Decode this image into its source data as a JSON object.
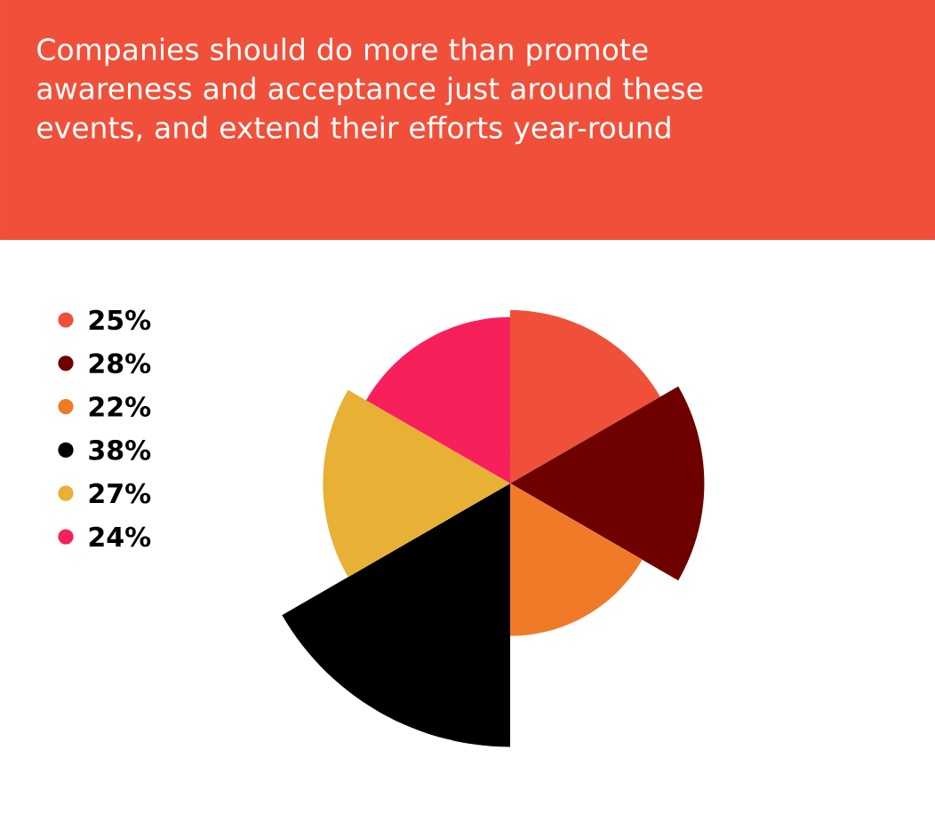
{
  "chart_data": {
    "type": "other",
    "title": "Companies should do more than promote awareness and acceptance just around these events, and extend their efforts year-round",
    "categories": [
      null,
      null,
      null,
      null,
      null,
      null
    ],
    "values": [
      25,
      28,
      22,
      38,
      27,
      24
    ],
    "value_labels": [
      "25%",
      "28%",
      "22%",
      "38%",
      "27%",
      "24%"
    ],
    "colors": [
      "#f0503a",
      "#6e0000",
      "#f07a28",
      "#000000",
      "#e8b035",
      "#f7205a"
    ]
  }
}
